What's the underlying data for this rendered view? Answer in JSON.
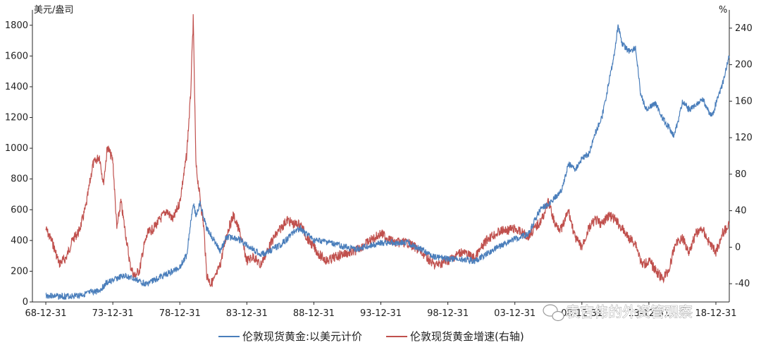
{
  "colors": {
    "gold_price": "#4a7ebb",
    "gold_growth": "#c0504d",
    "axis": "#262626"
  },
  "chart_data": {
    "type": "line",
    "left_axis": {
      "unit": "美元/盎司",
      "ticks": [
        0,
        200,
        400,
        600,
        800,
        1000,
        1200,
        1400,
        1600,
        1800
      ],
      "range": [
        0,
        1900
      ]
    },
    "right_axis": {
      "unit": "%",
      "ticks": [
        -40,
        0,
        40,
        80,
        120,
        160,
        200,
        240
      ],
      "range": [
        -60,
        260
      ]
    },
    "x_ticks": [
      "68-12-31",
      "73-12-31",
      "78-12-31",
      "83-12-31",
      "88-12-31",
      "93-12-31",
      "98-12-31",
      "03-12-31",
      "08-12-31",
      "13-12-31",
      "18-12-31"
    ],
    "x_range": [
      1968.0,
      2020.0
    ],
    "grid": false,
    "legend_position": "bottom",
    "series": [
      {
        "name": "伦敦现货黄金:以美元计价",
        "axis": "left",
        "x": [
          1969.0,
          1970.0,
          1971.0,
          1972.0,
          1973.0,
          1973.5,
          1974.0,
          1974.5,
          1975.0,
          1975.5,
          1976.0,
          1976.5,
          1977.0,
          1977.5,
          1978.0,
          1978.5,
          1979.0,
          1979.5,
          1980.0,
          1980.2,
          1980.5,
          1981.0,
          1981.5,
          1982.0,
          1982.5,
          1983.0,
          1983.5,
          1984.0,
          1984.5,
          1985.0,
          1985.5,
          1986.0,
          1986.5,
          1987.0,
          1987.5,
          1988.0,
          1988.5,
          1989.0,
          1990.0,
          1991.0,
          1992.0,
          1993.0,
          1994.0,
          1995.0,
          1996.0,
          1997.0,
          1998.0,
          1999.0,
          2000.0,
          2001.0,
          2002.0,
          2003.0,
          2004.0,
          2005.0,
          2006.0,
          2006.5,
          2007.0,
          2007.5,
          2008.0,
          2008.5,
          2009.0,
          2009.5,
          2010.0,
          2010.5,
          2011.0,
          2011.4,
          2011.7,
          2012.0,
          2012.5,
          2013.0,
          2013.4,
          2013.8,
          2014.5,
          2015.0,
          2015.9,
          2016.5,
          2017.0,
          2018.0,
          2018.7,
          2019.0,
          2019.5,
          2020.0
        ],
        "y": [
          42,
          36,
          38,
          52,
          75,
          120,
          140,
          160,
          170,
          150,
          135,
          115,
          140,
          160,
          180,
          200,
          230,
          300,
          650,
          560,
          640,
          480,
          410,
          330,
          420,
          420,
          400,
          370,
          340,
          310,
          320,
          350,
          370,
          410,
          460,
          480,
          440,
          400,
          390,
          365,
          345,
          360,
          385,
          385,
          385,
          340,
          295,
          280,
          280,
          265,
          320,
          370,
          410,
          445,
          620,
          630,
          680,
          730,
          900,
          860,
          930,
          960,
          1100,
          1200,
          1420,
          1600,
          1800,
          1680,
          1630,
          1650,
          1350,
          1250,
          1290,
          1200,
          1080,
          1300,
          1250,
          1320,
          1200,
          1290,
          1420,
          1600
        ]
      },
      {
        "name": "伦敦现货黄金增速(右轴)",
        "axis": "right",
        "x": [
          1969.0,
          1969.5,
          1970.0,
          1970.5,
          1971.0,
          1971.5,
          1972.0,
          1972.5,
          1973.0,
          1973.3,
          1973.6,
          1974.0,
          1974.3,
          1974.6,
          1975.0,
          1975.3,
          1975.6,
          1976.0,
          1976.3,
          1976.6,
          1977.0,
          1977.5,
          1978.0,
          1978.5,
          1979.0,
          1979.5,
          1979.8,
          1980.0,
          1980.2,
          1980.5,
          1980.8,
          1981.0,
          1981.3,
          1981.6,
          1982.0,
          1982.5,
          1983.0,
          1983.5,
          1984.0,
          1984.5,
          1985.0,
          1985.5,
          1986.0,
          1986.5,
          1987.0,
          1987.5,
          1988.0,
          1988.5,
          1989.0,
          1989.5,
          1990.0,
          1991.0,
          1992.0,
          1993.0,
          1994.0,
          1995.0,
          1996.0,
          1997.0,
          1998.0,
          1999.0,
          2000.0,
          2001.0,
          2002.0,
          2003.0,
          2004.0,
          2005.0,
          2006.0,
          2006.5,
          2007.0,
          2007.5,
          2008.0,
          2008.5,
          2009.0,
          2009.5,
          2010.0,
          2010.5,
          2011.0,
          2011.5,
          2012.0,
          2012.5,
          2013.0,
          2013.5,
          2014.0,
          2014.5,
          2015.0,
          2015.5,
          2016.0,
          2016.5,
          2017.0,
          2017.5,
          2018.0,
          2018.5,
          2019.0,
          2019.5,
          2020.0
        ],
        "y": [
          20,
          5,
          -18,
          -12,
          8,
          18,
          45,
          90,
          100,
          70,
          110,
          95,
          20,
          50,
          10,
          -20,
          -32,
          -25,
          0,
          15,
          20,
          30,
          40,
          30,
          50,
          100,
          165,
          250,
          90,
          55,
          20,
          -30,
          -40,
          -35,
          -20,
          15,
          35,
          15,
          -15,
          -10,
          -20,
          -5,
          10,
          20,
          30,
          25,
          25,
          10,
          0,
          -10,
          -15,
          -8,
          -5,
          5,
          15,
          5,
          5,
          -5,
          -20,
          -15,
          -5,
          -12,
          10,
          18,
          20,
          12,
          30,
          50,
          25,
          20,
          40,
          10,
          0,
          20,
          30,
          25,
          35,
          30,
          20,
          10,
          5,
          -20,
          -15,
          -25,
          -35,
          -25,
          5,
          10,
          -5,
          15,
          20,
          5,
          -5,
          15,
          25
        ]
      }
    ]
  },
  "watermark": {
    "text": "袁吉伟的外资管观察"
  }
}
